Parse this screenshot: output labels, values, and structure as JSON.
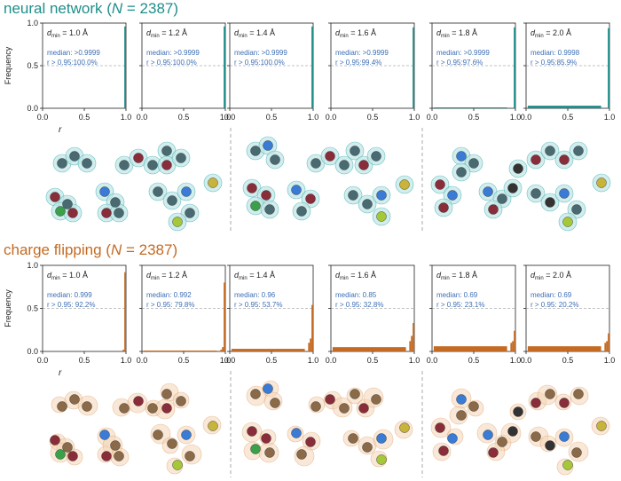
{
  "colors": {
    "nn": "#1e8e8a",
    "cf": "#c46a22",
    "stat_text": "#3d6fb5",
    "axis": "#222222"
  },
  "sections": [
    {
      "key": "nn",
      "title_prefix": "neural network (",
      "title_var": "N",
      "title_suffix": " = 2387)",
      "color": "#1e8e8a"
    },
    {
      "key": "cf",
      "title_prefix": "charge flipping (",
      "title_var": "N",
      "title_suffix": " = 2387)",
      "color": "#c46a22"
    }
  ],
  "chart_data": [
    {
      "type": "bar",
      "group": "neural network",
      "xlabel": "r",
      "ylabel": "Frequency",
      "xlim": [
        0,
        1
      ],
      "ylim": [
        0,
        1
      ],
      "xticks": [
        "0.0",
        "0.5",
        "1.0"
      ],
      "yticks": [
        "0.0",
        "0.5",
        "1.0"
      ],
      "bin_width": 0.02,
      "panels": [
        {
          "dmin": "1.0 Å",
          "median": "median: >0.9999",
          "r95": "r > 0.95:100.0%",
          "bins": [
            0.96
          ]
        },
        {
          "dmin": "1.2 Å",
          "median": "median: >0.9999",
          "r95": "r > 0.95:100.0%",
          "bins": [
            0.96
          ]
        },
        {
          "dmin": "1.4 Å",
          "median": "median: >0.9999",
          "r95": "r > 0.95:100.0%",
          "bins": [
            0.96
          ]
        },
        {
          "dmin": "1.6 Å",
          "median": "median: >0.9999",
          "r95": "r > 0.95:99.4%",
          "bins": [
            0.95
          ]
        },
        {
          "dmin": "1.8 Å",
          "median": "median: >0.9999",
          "r95": "r > 0.95:97.6%",
          "bins": [
            0.95
          ],
          "tail": 0.01
        },
        {
          "dmin": "2.0 Å",
          "median": "median: 0.9998",
          "r95": "r > 0.95:85.9%",
          "bins": [
            0.94
          ],
          "tail": 0.03
        }
      ]
    },
    {
      "type": "bar",
      "group": "charge flipping",
      "xlabel": "r",
      "ylabel": "Frequency",
      "xlim": [
        0,
        1
      ],
      "ylim": [
        0,
        1
      ],
      "xticks": [
        "0.0",
        "0.5",
        "1.0"
      ],
      "yticks": [
        "0.0",
        "0.5",
        "1.0"
      ],
      "bin_width": 0.02,
      "panels": [
        {
          "dmin": "1.0 Å",
          "median": "median: 0.999",
          "r95": "r > 0.95: 92.2%",
          "bins": [
            0.02,
            0.92
          ],
          "tail": 0.0
        },
        {
          "dmin": "1.2 Å",
          "median": "median: 0.992",
          "r95": "r > 0.95: 79.8%",
          "bins": [
            0.02,
            0.05,
            0.8
          ],
          "tail": 0.01
        },
        {
          "dmin": "1.4 Å",
          "median": "median: 0.96",
          "r95": "r > 0.95: 53.7%",
          "bins": [
            0.1,
            0.15,
            0.54
          ],
          "tail": 0.03
        },
        {
          "dmin": "1.6 Å",
          "median": "median: 0.85",
          "r95": "r > 0.95: 32.8%",
          "bins": [
            0.12,
            0.18,
            0.33
          ],
          "tail": 0.05
        },
        {
          "dmin": "1.8 Å",
          "median": "median: 0.69",
          "r95": "r > 0.95: 23.1%",
          "bins": [
            0.1,
            0.12,
            0.24
          ],
          "tail": 0.06
        },
        {
          "dmin": "2.0 Å",
          "median": "median: 0.69",
          "r95": "r > 0.95: 20.2%",
          "bins": [
            0.1,
            0.12,
            0.21
          ],
          "tail": 0.06
        }
      ]
    }
  ]
}
